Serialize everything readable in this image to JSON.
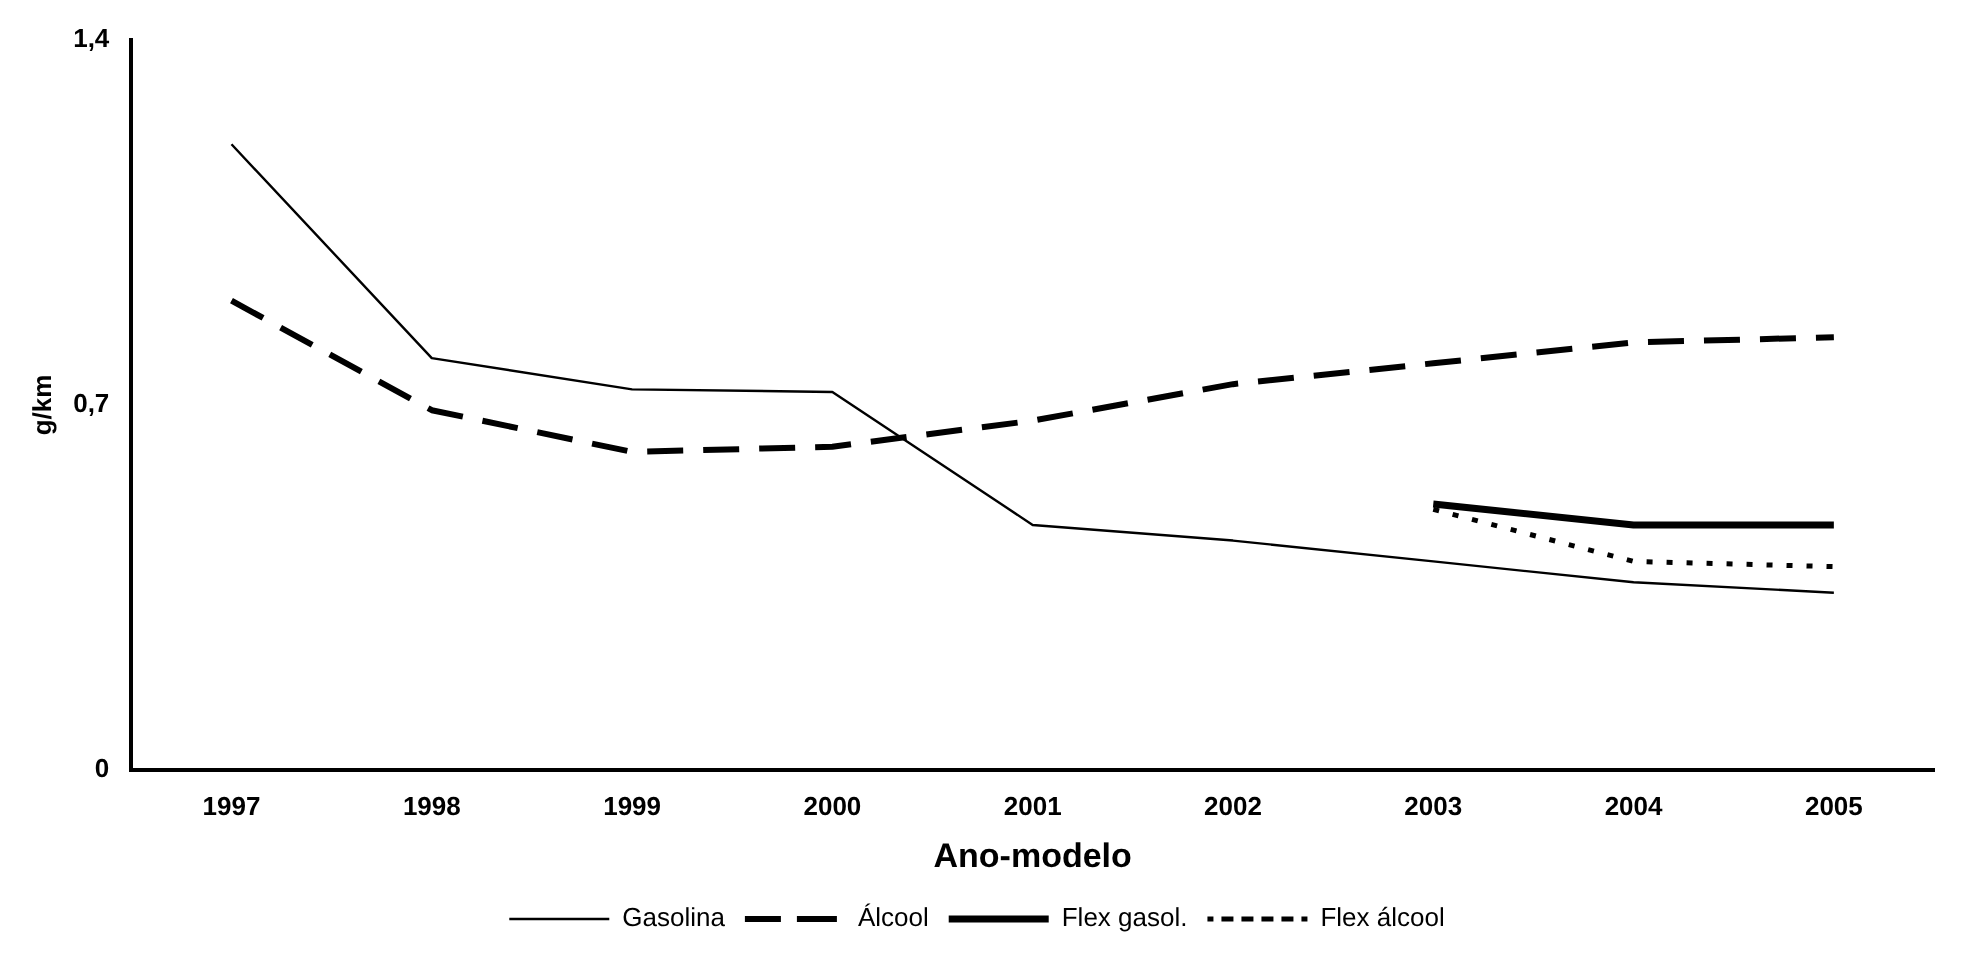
{
  "chart_data": {
    "type": "line",
    "xlabel": "Ano-modelo",
    "ylabel": "g/km",
    "categories": [
      "1997",
      "1998",
      "1999",
      "2000",
      "2001",
      "2002",
      "2003",
      "2004",
      "2005"
    ],
    "series": [
      {
        "name": "Gasolina",
        "color": "#000000",
        "line_style": "solid",
        "values": [
          1.2,
          0.79,
          0.73,
          0.725,
          0.47,
          0.44,
          0.4,
          0.36,
          0.34
        ]
      },
      {
        "name": "Álcool",
        "color": "#000000",
        "line_style": "dashed",
        "values": [
          0.9,
          0.69,
          0.61,
          0.62,
          0.67,
          0.74,
          0.78,
          0.82,
          0.83
        ]
      },
      {
        "name": "Flex gasol.",
        "color": "#000000",
        "line_style": "solid",
        "values": [
          null,
          null,
          null,
          null,
          null,
          null,
          0.51,
          0.47,
          0.47
        ]
      },
      {
        "name": "Flex álcool",
        "color": "#000000",
        "line_style": "dotted",
        "values": [
          null,
          null,
          null,
          null,
          null,
          null,
          0.5,
          0.4,
          0.39
        ]
      }
    ],
    "ylim": [
      0,
      1.4
    ],
    "yticks": [
      {
        "value": 0,
        "label": "0"
      },
      {
        "value": 0.7,
        "label": "0,7"
      },
      {
        "value": 1.4,
        "label": "1,4"
      }
    ],
    "grid": false,
    "legend": "bottom",
    "marker": "none"
  }
}
